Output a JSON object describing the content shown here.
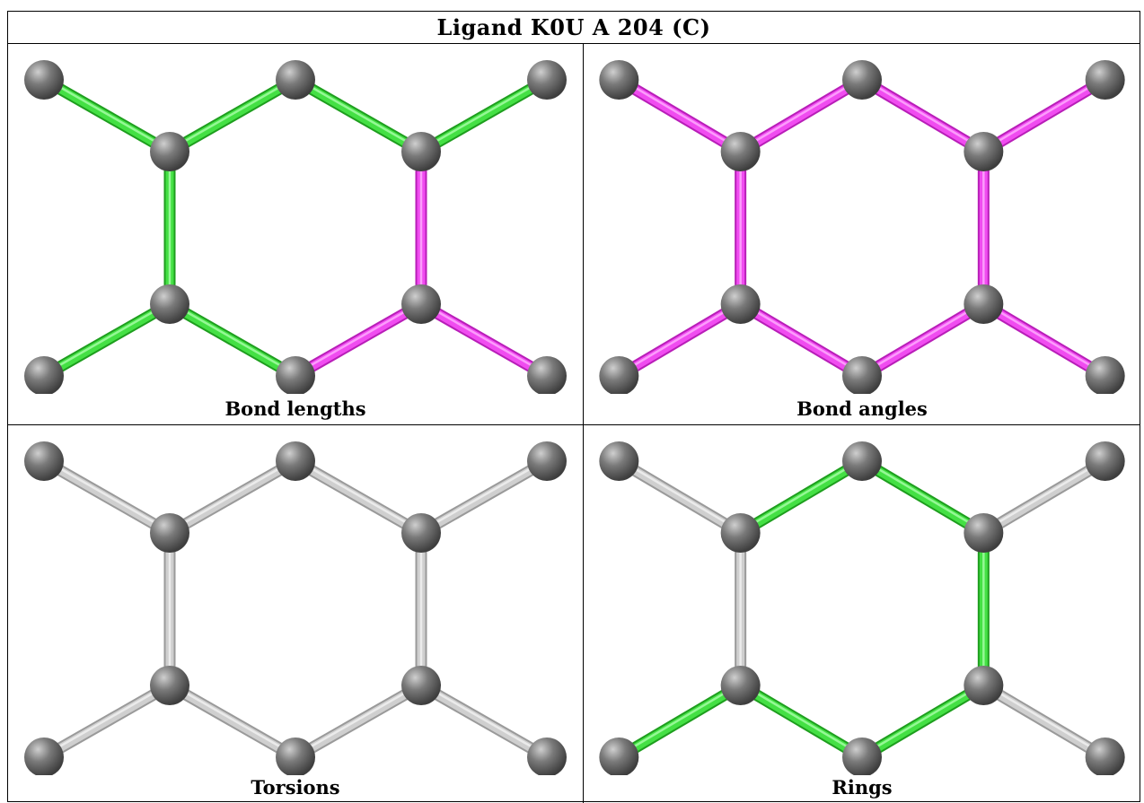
{
  "title": "Ligand K0U A 204 (C)",
  "colors": {
    "atom": "#7a7a7a",
    "green": "#2ecc2e",
    "magenta": "#e62ee6",
    "grey": "#c4c4c4"
  },
  "panels": [
    {
      "caption": "Bond lengths",
      "bonds": [
        "green",
        "green",
        "green",
        "green",
        "green",
        "green",
        "green",
        "green",
        "magenta",
        "magenta",
        "magenta",
        "magenta"
      ]
    },
    {
      "caption": "Bond angles",
      "bonds": [
        "magenta",
        "magenta",
        "magenta",
        "magenta",
        "magenta",
        "magenta",
        "magenta",
        "magenta",
        "magenta",
        "magenta",
        "magenta",
        "magenta"
      ]
    },
    {
      "caption": "Torsions",
      "bonds": [
        "grey",
        "grey",
        "grey",
        "grey",
        "grey",
        "grey",
        "grey",
        "grey",
        "grey",
        "grey",
        "grey",
        "grey"
      ]
    },
    {
      "caption": "Rings",
      "bonds": [
        "grey",
        "green",
        "green",
        "grey",
        "grey",
        "green",
        "green",
        "grey",
        "green",
        "grey",
        "green",
        "green"
      ]
    }
  ]
}
